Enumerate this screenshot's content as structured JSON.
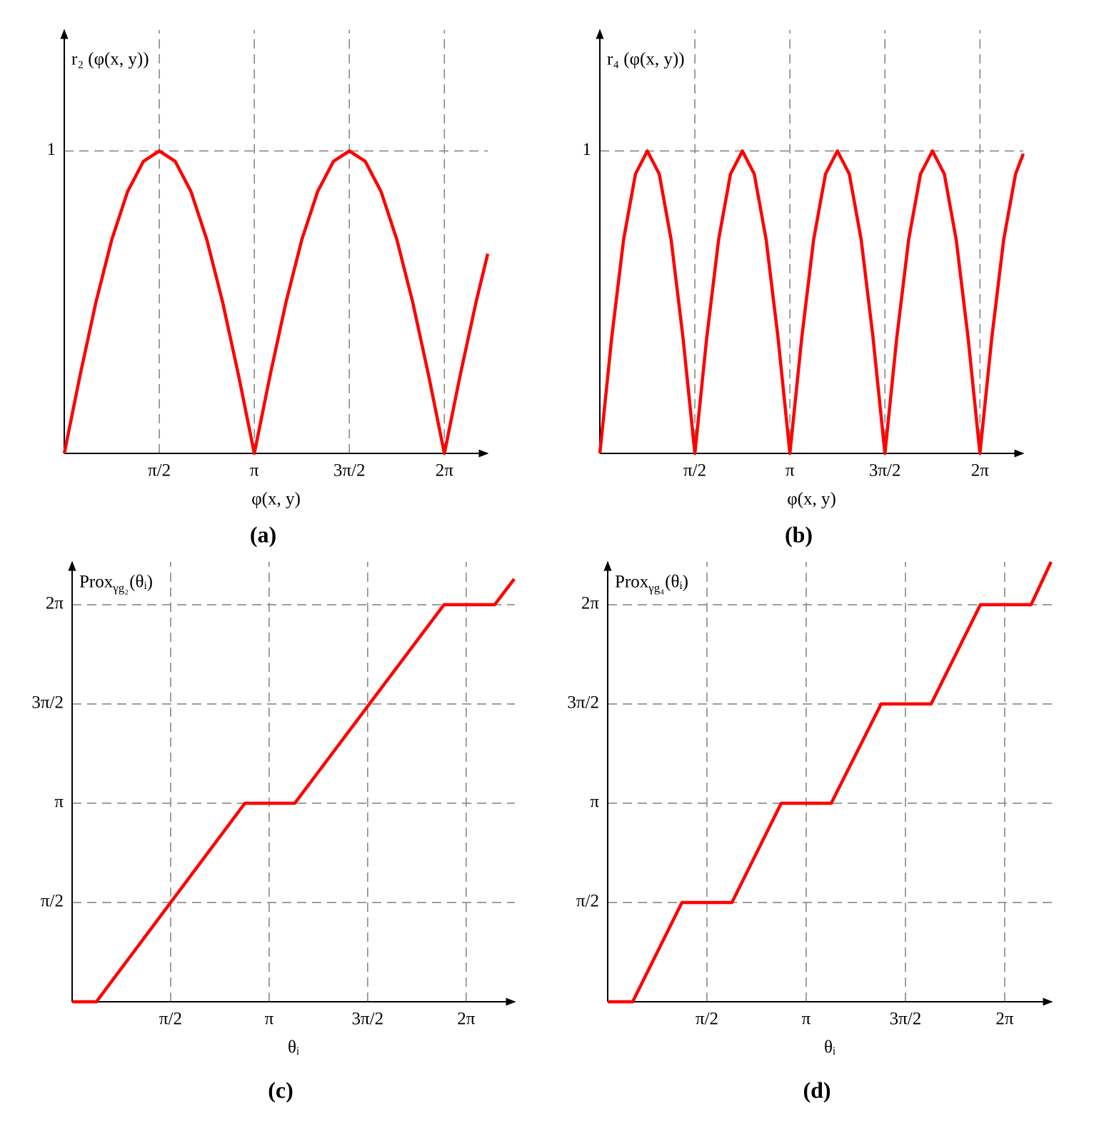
{
  "chart_data": [
    {
      "type": "line",
      "caption": "(a)",
      "y_label": "r₂ (φ(x, y))",
      "x_label": "φ(x, y)",
      "x": [
        0,
        0.2618,
        0.5236,
        0.7854,
        1.0472,
        1.309,
        1.5708,
        1.8326,
        2.0944,
        2.3562,
        2.618,
        2.8798,
        3.1416,
        3.4034,
        3.6652,
        3.927,
        4.1888,
        4.4506,
        4.7124,
        4.9742,
        5.236,
        5.4978,
        5.7596,
        6.0214,
        6.2832,
        6.545,
        6.8068,
        7.0
      ],
      "values": [
        0,
        0.259,
        0.5,
        0.707,
        0.866,
        0.966,
        1,
        0.966,
        0.866,
        0.707,
        0.5,
        0.259,
        0,
        0.259,
        0.5,
        0.707,
        0.866,
        0.966,
        1,
        0.966,
        0.866,
        0.707,
        0.5,
        0.259,
        0,
        0.259,
        0.5,
        0.66
      ],
      "color": "#ff0000",
      "xlim": [
        0,
        7.0
      ],
      "ylim": [
        0,
        1.4
      ],
      "xticks": [
        {
          "value": 1.5708,
          "label": "π/2"
        },
        {
          "value": 3.1416,
          "label": "π"
        },
        {
          "value": 4.7124,
          "label": "3π/2"
        },
        {
          "value": 6.2832,
          "label": "2π"
        }
      ],
      "yticks": [
        1
      ],
      "grid": true
    },
    {
      "type": "line",
      "caption": "(b)",
      "y_label": "r₄ (φ(x, y))",
      "x_label": "φ(x, y)",
      "x": [
        0,
        0.1963,
        0.3927,
        0.589,
        0.7854,
        0.9817,
        1.1781,
        1.3744,
        1.5708,
        1.7671,
        1.9635,
        2.1598,
        2.3562,
        2.5525,
        2.7489,
        2.9452,
        3.1416,
        3.3379,
        3.5343,
        3.7306,
        3.927,
        4.1233,
        4.3197,
        4.516,
        4.7124,
        4.9087,
        5.1051,
        5.3014,
        5.4978,
        5.6941,
        5.8905,
        6.0868,
        6.2832,
        6.4795,
        6.6759,
        6.8722,
        7.0
      ],
      "values": [
        0,
        0.383,
        0.707,
        0.924,
        1,
        0.924,
        0.707,
        0.383,
        0,
        0.383,
        0.707,
        0.924,
        1,
        0.924,
        0.707,
        0.383,
        0,
        0.383,
        0.707,
        0.924,
        1,
        0.924,
        0.707,
        0.383,
        0,
        0.383,
        0.707,
        0.924,
        1,
        0.924,
        0.707,
        0.383,
        0,
        0.383,
        0.707,
        0.924,
        0.991
      ],
      "color": "#ff0000",
      "xlim": [
        0,
        7.0
      ],
      "ylim": [
        0,
        1.4
      ],
      "xticks": [
        {
          "value": 1.5708,
          "label": "π/2"
        },
        {
          "value": 3.1416,
          "label": "π"
        },
        {
          "value": 4.7124,
          "label": "3π/2"
        },
        {
          "value": 6.2832,
          "label": "2π"
        }
      ],
      "yticks": [
        1
      ],
      "grid": true
    },
    {
      "type": "line",
      "caption": "(c)",
      "y_label": "Prox",
      "y_label_sub": "γg₂",
      "y_label_end": "(θᵢ)",
      "x_label": "θᵢ",
      "x": [
        0,
        0.387,
        2.755,
        3.551,
        5.93,
        6.738,
        7.05
      ],
      "values": [
        0,
        0,
        3.1416,
        3.1416,
        6.2832,
        6.2832,
        6.69
      ],
      "color": "#ff0000",
      "xlim": [
        0,
        7.06
      ],
      "ylim": [
        0,
        6.96
      ],
      "xticks": [
        {
          "value": 1.5708,
          "label": "π/2"
        },
        {
          "value": 3.1416,
          "label": "π"
        },
        {
          "value": 4.7124,
          "label": "3π/2"
        },
        {
          "value": 6.2832,
          "label": "2π"
        }
      ],
      "yticks": [
        {
          "value": 1.5708,
          "label": "π/2"
        },
        {
          "value": 3.1416,
          "label": "π"
        },
        {
          "value": 4.7124,
          "label": "3π/2"
        },
        {
          "value": 6.2832,
          "label": "2π"
        }
      ],
      "grid": true
    },
    {
      "type": "line",
      "caption": "(d)",
      "y_label": "Prox",
      "y_label_sub": "γg₄",
      "y_label_end": "(θᵢ)",
      "x_label": "θᵢ",
      "x": [
        0,
        0.395,
        1.175,
        1.966,
        2.746,
        3.537,
        4.328,
        5.119,
        5.899,
        6.701,
        7.017
      ],
      "values": [
        0,
        0,
        1.5708,
        1.5708,
        3.1416,
        3.1416,
        4.7124,
        4.7124,
        6.2832,
        6.2832,
        6.96
      ],
      "color": "#ff0000",
      "xlim": [
        0,
        7.03
      ],
      "ylim": [
        0,
        6.96
      ],
      "xticks": [
        {
          "value": 1.5708,
          "label": "π/2"
        },
        {
          "value": 3.1416,
          "label": "π"
        },
        {
          "value": 4.7124,
          "label": "3π/2"
        },
        {
          "value": 6.2832,
          "label": "2π"
        }
      ],
      "yticks": [
        {
          "value": 1.5708,
          "label": "π/2"
        },
        {
          "value": 3.1416,
          "label": "π"
        },
        {
          "value": 4.7124,
          "label": "3π/2"
        },
        {
          "value": 6.2832,
          "label": "2π"
        }
      ],
      "grid": true
    }
  ]
}
